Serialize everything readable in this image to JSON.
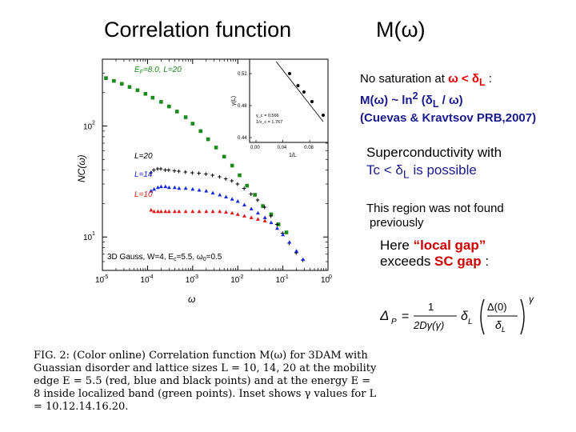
{
  "header": {
    "left_title": "Correlation  function",
    "right_title": "M(ω)"
  },
  "note": {
    "line1_prefix": "No saturation  at ",
    "line1_cond": "ω < δ",
    "line1_sub": "L",
    "line1_suffix": " :",
    "line2": "M(ω)  ~ ln",
    "line2_sup": "2",
    "line2_rest": " (δ",
    "line2_sub": "L",
    "line2_end": " / ω)",
    "line3": "(Cuevas & Kravtsov  PRB,2007)"
  },
  "superconductivity": {
    "line1": "Superconductivity  with",
    "line2_prefix": "Tc < δ",
    "line2_sub": "L",
    "line2_suffix": "  is possible"
  },
  "region": {
    "line1": "This region was not found",
    "line2": "previously"
  },
  "gap": {
    "line1_prefix": "Here ",
    "line1_quote": "“local gap”",
    "line2_prefix": "exceeds ",
    "line2_red": "SC gap",
    "line2_suffix": "  :"
  },
  "formula": {
    "lhs": "Δ",
    "lhs_sub": "P",
    "eq": "=",
    "frac_num": "1",
    "frac_den": "2Dγ(γ)",
    "delta": "δ",
    "delta_sub": "L",
    "inner_num": "Δ(0)",
    "inner_den": "δ",
    "inner_den_sub": "L",
    "exp": "γ"
  },
  "caption": {
    "text": "FIG. 2: (Color online) Correlation function M(ω) for 3DAM with Guassian disorder and lattice sizes L = 10, 14, 20 at the mobility edge E = 5.5 (red, blue and black points) and at the energy E = 8 inside localized band (green points). Inset shows γ values for L = 10.12.14.16.20."
  },
  "colors": {
    "green": "#1c8a1c",
    "blue": "#1c2bd8",
    "red": "#e01a1a",
    "black": "#000000",
    "accent_red": "#e00000",
    "accent_blue": "#1a1a8c"
  },
  "chart_data": {
    "type": "scatter",
    "title": "",
    "xlabel": "ω",
    "ylabel": "NC(ω)",
    "xscale": "log",
    "yscale": "log",
    "xlim": [
      1e-05,
      1
    ],
    "ylim": [
      5,
      400
    ],
    "x_ticks": [
      {
        "value": 1e-05,
        "label": "10",
        "exp": "-5"
      },
      {
        "value": 0.0001,
        "label": "10",
        "exp": "-4"
      },
      {
        "value": 0.001,
        "label": "10",
        "exp": "-3"
      },
      {
        "value": 0.01,
        "label": "10",
        "exp": "-2"
      },
      {
        "value": 0.1,
        "label": "10",
        "exp": "-1"
      },
      {
        "value": 1,
        "label": "10",
        "exp": "0"
      }
    ],
    "y_ticks": [
      {
        "value": 10,
        "label": "10",
        "exp": "1"
      },
      {
        "value": 100,
        "label": "10",
        "exp": "2"
      }
    ],
    "legend": [
      {
        "label": "E",
        "sub": "F",
        "rest": "=8.0, L=20",
        "color": "green"
      },
      {
        "label": "L=20",
        "color": "black"
      },
      {
        "label": "L=14",
        "color": "blue"
      },
      {
        "label": "L=10",
        "color": "red"
      }
    ],
    "annotation": {
      "text": "3D Gauss, W=4, E",
      "sub": "c",
      "rest": "=5.5, ω",
      "sub2": "0",
      "end": "=0.5"
    },
    "series": [
      {
        "name": "green E=8.0 L=20",
        "color": "green",
        "x": [
          1.2e-05,
          1.8e-05,
          2.7e-05,
          4e-05,
          6e-05,
          9e-05,
          0.00013,
          0.0002,
          0.0003,
          0.00045,
          0.0007,
          0.001,
          0.0015,
          0.0022,
          0.0033,
          0.005,
          0.0075,
          0.011,
          0.016,
          0.024,
          0.036,
          0.055,
          0.08,
          0.12
        ],
        "y": [
          270,
          255,
          240,
          225,
          210,
          195,
          180,
          165,
          150,
          135,
          120,
          105,
          90,
          76,
          64,
          53,
          44,
          36,
          29,
          24,
          19,
          16,
          13,
          11
        ]
      },
      {
        "name": "L=20",
        "color": "black",
        "x": [
          0.00012,
          0.00014,
          0.00017,
          0.0002,
          0.00025,
          0.0003,
          0.0004,
          0.0005,
          0.0007,
          0.001,
          0.0014,
          0.002,
          0.0028,
          0.004,
          0.0055,
          0.0075,
          0.01,
          0.014,
          0.02,
          0.028,
          0.04,
          0.055,
          0.075,
          0.1,
          0.14,
          0.2,
          0.28
        ],
        "y": [
          38,
          40,
          41,
          41,
          40,
          40,
          39.5,
          39,
          38.5,
          38,
          37.5,
          37,
          36,
          35,
          33.5,
          32,
          30,
          27.5,
          24.5,
          21.5,
          18.5,
          15.5,
          13,
          10.8,
          8.8,
          7.2,
          6.2
        ]
      },
      {
        "name": "L=14",
        "color": "blue",
        "x": [
          0.00012,
          0.00014,
          0.00017,
          0.0002,
          0.00025,
          0.0003,
          0.0004,
          0.0005,
          0.0007,
          0.001,
          0.0014,
          0.002,
          0.0028,
          0.004,
          0.0055,
          0.0075,
          0.01,
          0.014,
          0.02,
          0.028,
          0.04,
          0.055,
          0.075,
          0.1,
          0.14,
          0.2,
          0.28
        ],
        "y": [
          26,
          27,
          28,
          28.5,
          28.5,
          28,
          28,
          27.5,
          27.5,
          27,
          26.5,
          26,
          25,
          24,
          23,
          22,
          21,
          19.5,
          18,
          16.5,
          15,
          13.5,
          12,
          10.5,
          9,
          7.5,
          6.3
        ]
      },
      {
        "name": "L=10",
        "color": "red",
        "x": [
          0.00012,
          0.00014,
          0.00017,
          0.0002,
          0.00025,
          0.0003,
          0.0004,
          0.0005,
          0.0007,
          0.001,
          0.0014,
          0.002,
          0.0028,
          0.004,
          0.0055,
          0.0075,
          0.01,
          0.014,
          0.02,
          0.028,
          0.04
        ],
        "y": [
          17.5,
          17,
          17,
          17,
          17,
          17,
          17,
          17,
          17,
          17,
          17,
          17,
          17,
          17,
          16.8,
          16.5,
          16,
          15.5,
          15,
          14.5,
          14
        ]
      }
    ],
    "inset": {
      "xlabel": "1/L",
      "ylabel": "γ(L)",
      "xlim": [
        0,
        0.1
      ],
      "ylim": [
        0.44,
        0.53
      ],
      "x_ticks": [
        "0.00",
        "0.04",
        "0.08"
      ],
      "x_tick_values": [
        0,
        0.04,
        0.08
      ],
      "y_ticks": [
        "0.44",
        "0.48",
        "0.52"
      ],
      "y_tick_values": [
        0.44,
        0.48,
        0.52
      ],
      "x": [
        0.05,
        0.0625,
        0.0714,
        0.0833,
        0.1
      ],
      "y": [
        0.52,
        0.505,
        0.497,
        0.485,
        0.468
      ],
      "fit_label1": "γ_c = 0.566",
      "fit_label2": "1/ν_c = 1.767"
    }
  }
}
